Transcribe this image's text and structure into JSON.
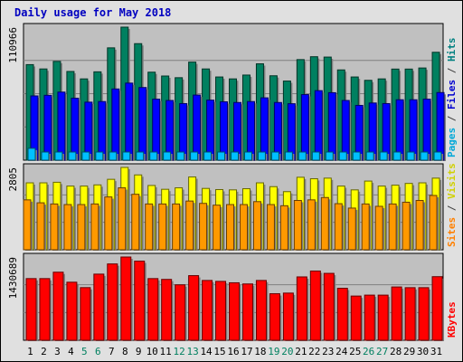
{
  "chart_data": {
    "type": "bar",
    "title": "Daily usage for May 2018",
    "categories": [
      "1",
      "2",
      "3",
      "4",
      "5",
      "6",
      "7",
      "8",
      "9",
      "10",
      "11",
      "12",
      "13",
      "14",
      "15",
      "16",
      "17",
      "18",
      "19",
      "20",
      "21",
      "22",
      "23",
      "24",
      "25",
      "26",
      "27",
      "28",
      "29",
      "30",
      "31"
    ],
    "weekend_days": [
      "5",
      "6",
      "12",
      "13",
      "19",
      "20",
      "26",
      "27"
    ],
    "panels": [
      {
        "name": "hits-files-pages",
        "scale_label": "110966",
        "ymax": 110966,
        "series_labels": [
          {
            "text": "Pages",
            "color": "#00a8d8"
          },
          {
            "text": " / ",
            "color": "#404040"
          },
          {
            "text": "Files",
            "color": "#0000d0"
          },
          {
            "text": " / ",
            "color": "#404040"
          },
          {
            "text": "Hits",
            "color": "#008080"
          }
        ],
        "series": [
          {
            "name": "Hits",
            "color": "#008060",
            "values": [
              79700,
              76100,
              82400,
              74000,
              67800,
              73700,
              93700,
              110966,
              97200,
              73400,
              70200,
              68800,
              81800,
              76100,
              69400,
              67800,
              71000,
              80400,
              70400,
              66000,
              83900,
              86300,
              86000,
              75300,
              69400,
              66600,
              67800,
              76000,
              76000,
              76900,
              90000
            ]
          },
          {
            "name": "Files",
            "color": "#0000ff",
            "values": [
              53600,
              54100,
              56800,
              51700,
              48400,
              48900,
              59400,
              64300,
              60600,
              50900,
              49800,
              47200,
              54300,
              50100,
              48700,
              48100,
              48900,
              52000,
              48100,
              47100,
              54700,
              58000,
              56300,
              49800,
              45700,
              47700,
              47200,
              50400,
              50400,
              50900,
              56400
            ]
          },
          {
            "name": "Pages",
            "color": "#00c0ff",
            "values": [
              9900,
              6800,
              6800,
              6800,
              6800,
              6800,
              6800,
              6800,
              6800,
              6800,
              6800,
              6800,
              6800,
              6800,
              6800,
              6800,
              6800,
              6800,
              6800,
              6800,
              6800,
              6800,
              6800,
              6800,
              6800,
              6800,
              6800,
              6800,
              6800,
              6800,
              6800
            ]
          }
        ]
      },
      {
        "name": "visits-sites",
        "scale_label": "2805",
        "ymax": 2805,
        "series_labels": [
          {
            "text": "Sites",
            "color": "#ff8000"
          },
          {
            "text": " / ",
            "color": "#404040"
          },
          {
            "text": "Visits",
            "color": "#d0d000"
          }
        ],
        "series": [
          {
            "name": "Visits",
            "color": "#ffff00",
            "values": [
              2280,
              2280,
              2300,
              2170,
              2170,
              2210,
              2400,
              2805,
              2550,
              2190,
              2060,
              2110,
              2480,
              2090,
              2050,
              2040,
              2080,
              2280,
              2150,
              1980,
              2470,
              2420,
              2440,
              2170,
              2040,
              2340,
              2170,
              2200,
              2260,
              2280,
              2440
            ]
          },
          {
            "name": "Sites",
            "color": "#ff9900",
            "values": [
              1700,
              1600,
              1560,
              1540,
              1540,
              1560,
              1800,
              2110,
              1890,
              1560,
              1560,
              1560,
              1660,
              1580,
              1520,
              1540,
              1540,
              1640,
              1540,
              1500,
              1680,
              1700,
              1780,
              1570,
              1420,
              1560,
              1480,
              1560,
              1620,
              1680,
              1850
            ]
          }
        ]
      },
      {
        "name": "kbytes",
        "scale_label": "1430689",
        "ymax": 1430689,
        "series_labels": [
          {
            "text": "KBytes",
            "color": "#ff0000"
          }
        ],
        "series": [
          {
            "name": "KBytes",
            "color": "#ff0000",
            "values": [
              1060000,
              1060000,
              1170000,
              998000,
              905000,
              1137000,
              1312000,
              1430689,
              1360000,
              1060000,
              1046000,
              953000,
              1111000,
              1028000,
              1012000,
              988000,
              968000,
              1028000,
              800000,
              811000,
              1089000,
              1190000,
              1150000,
              894000,
              760000,
              776000,
              776000,
              916000,
              904000,
              904000,
              1093000
            ]
          }
        ]
      }
    ]
  }
}
